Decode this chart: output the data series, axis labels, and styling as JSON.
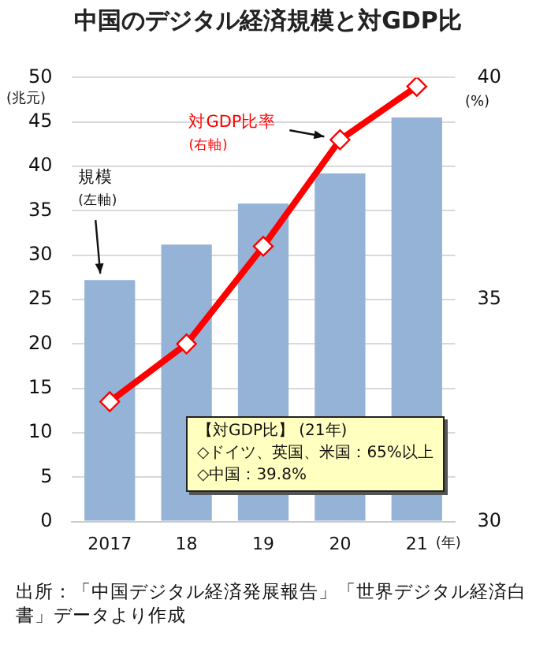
{
  "chart_data": {
    "type": "bar",
    "title": "中国のデジタル経済規模と対GDP比",
    "categories": [
      "2017",
      "18",
      "19",
      "20",
      "21"
    ],
    "xlabel": "(年)",
    "ylabel": "(兆元)",
    "y2label": "(%)",
    "series": [
      {
        "name": "規模\n(左軸)",
        "color": "#95b3d7",
        "values": [
          27.2,
          31.2,
          35.8,
          39.2,
          45.5
        ]
      },
      {
        "name": "対GDP比率\n(右軸)",
        "type": "line",
        "axis": "y2",
        "color": "#ff0000",
        "values": [
          32.7,
          34.0,
          36.2,
          38.6,
          39.8
        ]
      }
    ],
    "ylim": [
      0,
      50
    ],
    "yticks": [
      0,
      5,
      10,
      15,
      20,
      25,
      30,
      35,
      40,
      45,
      50
    ],
    "y2lim": [
      30,
      40
    ],
    "y2ticks": [
      30,
      35,
      40
    ],
    "grid": "y",
    "legend": false,
    "marker": "diamond",
    "line_style": "solid",
    "annotations": [
      "【対GDP比】 (21年)\n◇ドイツ、英国、米国：65%以上\n◇中国：39.8%",
      "出所：「中国デジタル経済発展報告」「世界デジタル経済白書」データより作成"
    ]
  }
}
